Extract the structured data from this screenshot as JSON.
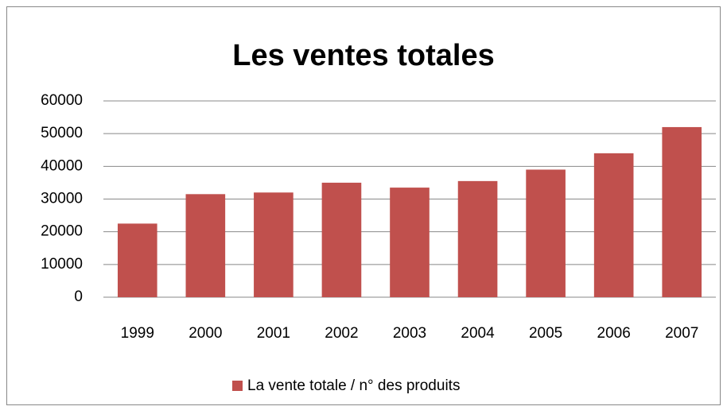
{
  "chart_data": {
    "type": "bar",
    "title": "Les ventes totales",
    "categories": [
      "1999",
      "2000",
      "2001",
      "2002",
      "2003",
      "2004",
      "2005",
      "2006",
      "2007"
    ],
    "series": [
      {
        "name": "La vente totale / n° des produits",
        "color": "#c0504d",
        "values": [
          22500,
          31500,
          32000,
          35000,
          33500,
          35500,
          39000,
          44000,
          52000
        ]
      }
    ],
    "ylim": [
      0,
      60000
    ],
    "yticks": [
      0,
      10000,
      20000,
      30000,
      40000,
      50000,
      60000
    ],
    "grid": true,
    "legend": "bottom"
  }
}
